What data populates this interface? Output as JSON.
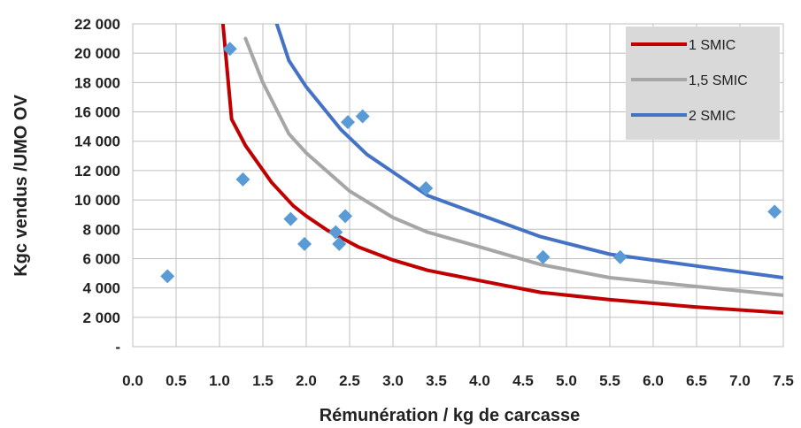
{
  "chart_data": {
    "type": "scatter",
    "title": "",
    "xlabel": "Rémunération / kg de carcasse",
    "ylabel": "Kgc vendus /UMO OV",
    "xlim": [
      0.0,
      7.5
    ],
    "ylim": [
      0,
      22000
    ],
    "x_ticks": [
      0.0,
      0.5,
      1.0,
      1.5,
      2.0,
      2.5,
      3.0,
      3.5,
      4.0,
      4.5,
      5.0,
      5.5,
      6.0,
      6.5,
      7.0,
      7.5
    ],
    "x_tick_labels": [
      "0.0",
      "0.5",
      "1.0",
      "1.5",
      "2.0",
      "2.5",
      "3.0",
      "3.5",
      "4.0",
      "4.5",
      "5.0",
      "5.5",
      "6.0",
      "6.5",
      "7.0",
      "7.5"
    ],
    "y_ticks": [
      0,
      2000,
      4000,
      6000,
      8000,
      10000,
      12000,
      14000,
      16000,
      18000,
      20000,
      22000
    ],
    "y_tick_labels": [
      "-",
      "2 000",
      "4 000",
      "6 000",
      "8 000",
      "10 000",
      "12 000",
      "14 000",
      "16 000",
      "18 000",
      "20 000",
      "22 000"
    ],
    "grid": true,
    "legend_position": "top-right",
    "series": [
      {
        "name": "1 SMIC",
        "kind": "line",
        "color": "#c00000",
        "x": [
          1.04,
          1.14,
          1.3,
          1.6,
          1.85,
          2.0,
          2.25,
          2.6,
          3.0,
          3.4,
          4.0,
          4.7,
          5.5,
          6.5,
          7.5
        ],
        "y": [
          22000,
          15500,
          13700,
          11200,
          9600,
          8900,
          7900,
          6800,
          5900,
          5200,
          4500,
          3700,
          3200,
          2700,
          2300
        ]
      },
      {
        "name": "1,5 SMIC",
        "kind": "line",
        "color": "#a6a6a6",
        "x": [
          1.3,
          1.5,
          1.8,
          2.0,
          2.5,
          3.0,
          3.4,
          4.0,
          4.7,
          5.5,
          6.5,
          7.5
        ],
        "y": [
          21000,
          18000,
          14500,
          13200,
          10600,
          8800,
          7800,
          6800,
          5600,
          4700,
          4100,
          3500
        ]
      },
      {
        "name": "2 SMIC",
        "kind": "line",
        "color": "#4472c4",
        "x": [
          1.66,
          1.8,
          2.0,
          2.4,
          2.7,
          3.0,
          3.4,
          4.0,
          4.7,
          5.5,
          6.5,
          7.5
        ],
        "y": [
          22000,
          19500,
          17700,
          14800,
          13100,
          11900,
          10300,
          9000,
          7500,
          6300,
          5500,
          4700
        ]
      },
      {
        "name": "",
        "kind": "scatter",
        "color": "#5b9bd5",
        "x": [
          0.4,
          1.12,
          1.27,
          1.82,
          1.98,
          2.34,
          2.38,
          2.45,
          2.48,
          2.65,
          3.38,
          4.73,
          5.62,
          7.4
        ],
        "y": [
          4800,
          20300,
          11400,
          8700,
          7000,
          7800,
          7000,
          8900,
          15300,
          15700,
          10800,
          6100,
          6100,
          9200
        ]
      }
    ]
  }
}
